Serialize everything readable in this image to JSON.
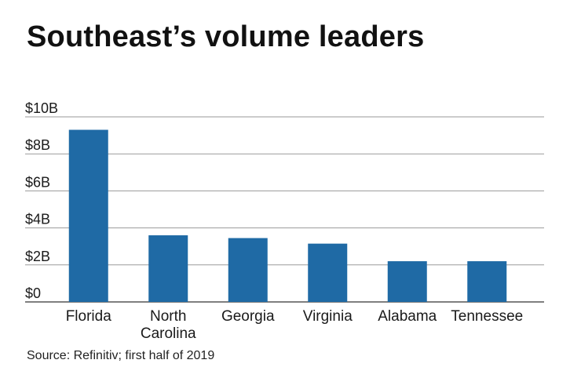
{
  "chart_data": {
    "type": "bar",
    "title": "Southeast’s volume leaders",
    "categories": [
      [
        "Florida"
      ],
      [
        "North",
        "Carolina"
      ],
      [
        "Georgia"
      ],
      [
        "Virginia"
      ],
      [
        "Alabama"
      ],
      [
        "Tennessee"
      ]
    ],
    "values": [
      9.3,
      3.6,
      3.45,
      3.15,
      2.2,
      2.2
    ],
    "unit": "billion USD",
    "ylim": [
      0,
      10
    ],
    "yticks": [
      {
        "value": 0,
        "label": "$0"
      },
      {
        "value": 2,
        "label": "$2B"
      },
      {
        "value": 4,
        "label": "$4B"
      },
      {
        "value": 6,
        "label": "$6B"
      },
      {
        "value": 8,
        "label": "$8B"
      },
      {
        "value": 10,
        "label": "$10B"
      }
    ],
    "xlabel": "",
    "ylabel": "",
    "grid": true,
    "bar_color": "#1f6aa5",
    "source": "Source: Refinitiv; first half of 2019"
  }
}
